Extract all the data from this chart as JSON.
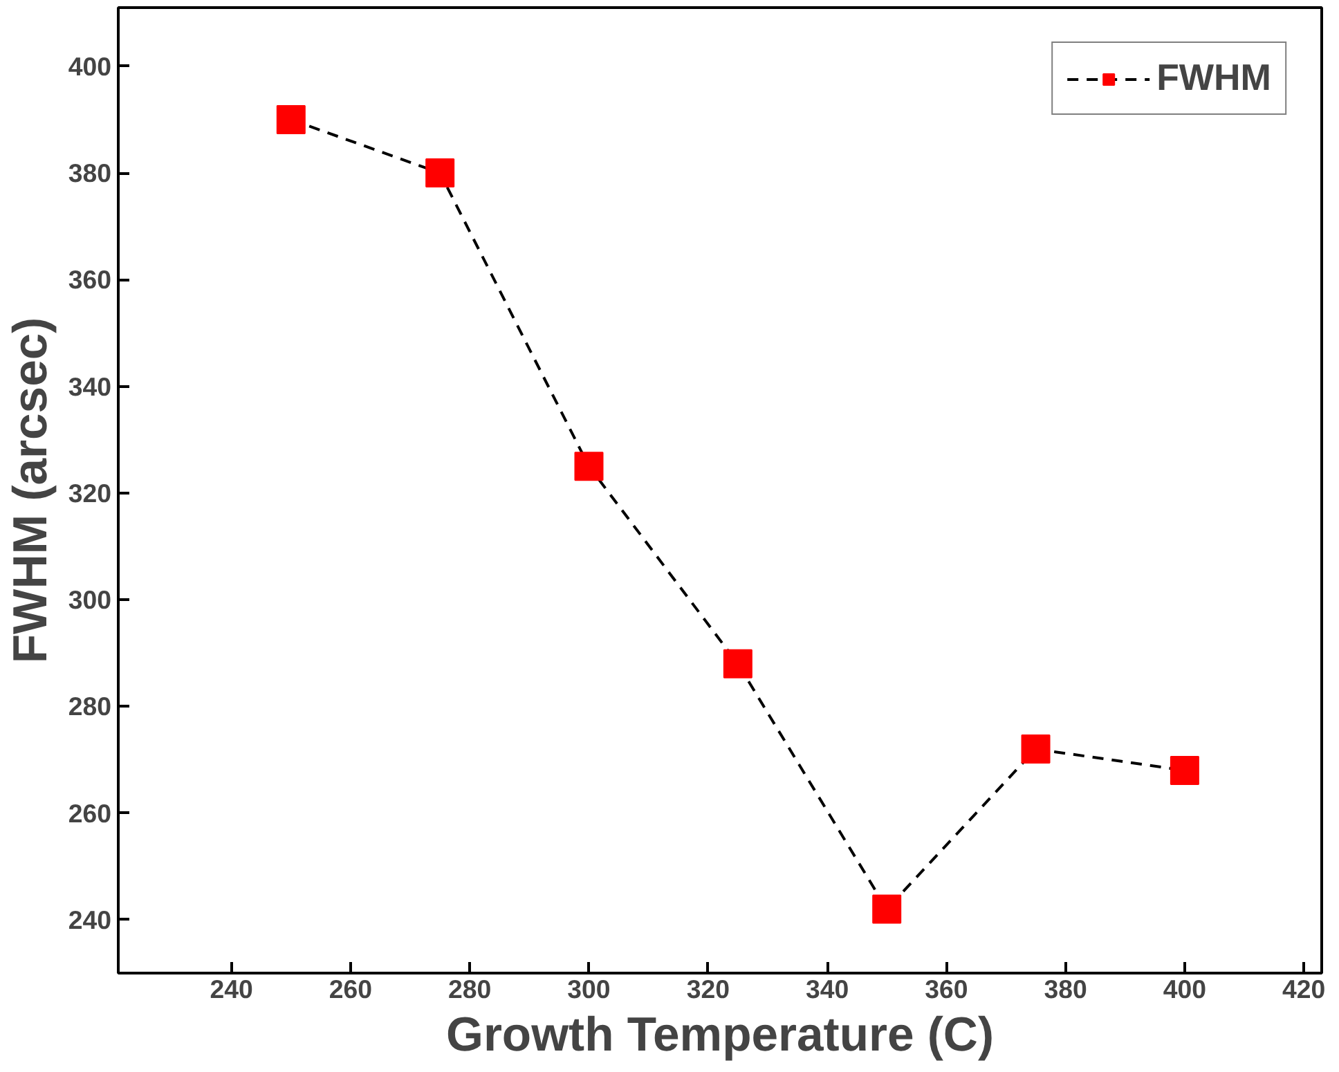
{
  "chart_data": {
    "type": "line",
    "xlabel": "Growth Temperature (C)",
    "ylabel": "FWHM (arcsec)",
    "x": [
      250,
      275,
      300,
      325,
      350,
      375,
      400
    ],
    "series": [
      {
        "name": "FWHM",
        "color": "#ff0000",
        "values": [
          390,
          380,
          325,
          288,
          242,
          272,
          268
        ]
      }
    ],
    "xlim": [
      221,
      423
    ],
    "ylim": [
      230,
      411
    ],
    "xticks": [
      240,
      260,
      280,
      300,
      320,
      340,
      360,
      380,
      400,
      420
    ],
    "yticks": [
      240,
      260,
      280,
      300,
      320,
      340,
      360,
      380,
      400
    ],
    "grid": false,
    "legend": "top right",
    "marker": "square",
    "line_style": "dashed"
  }
}
